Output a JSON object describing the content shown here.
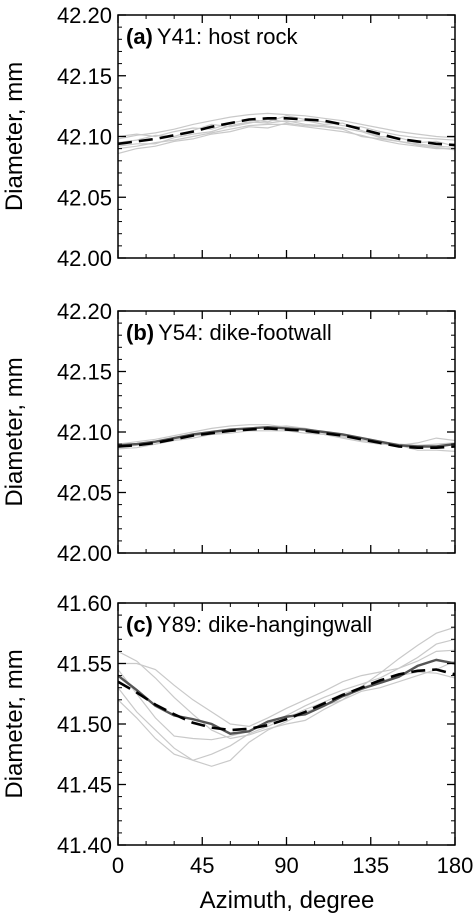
{
  "figure": {
    "ylabel": "Diameter, mm",
    "xlabel": "Azimuth, degree"
  },
  "chart_data": [
    {
      "type": "line",
      "letter": "(a)",
      "title": "Y41: host rock",
      "xlabel": "Azimuth, degree",
      "ylabel": "Diameter, mm",
      "xlim": [
        0,
        180
      ],
      "ylim": [
        42.0,
        42.2
      ],
      "x_ticks": [
        "0",
        "45",
        "90",
        "135",
        "180"
      ],
      "y_ticks": [
        "42.00",
        "42.05",
        "42.10",
        "42.15",
        "42.20"
      ],
      "x_tick_values": [
        0,
        45,
        90,
        135,
        180
      ],
      "y_tick_values": [
        42.0,
        42.05,
        42.1,
        42.15,
        42.2
      ],
      "x": [
        0,
        10,
        20,
        30,
        40,
        50,
        60,
        70,
        80,
        90,
        100,
        110,
        120,
        130,
        140,
        150,
        160,
        170,
        180
      ],
      "series": [
        {
          "style": "dashed",
          "values": [
            42.094,
            42.096,
            42.098,
            42.101,
            42.104,
            42.108,
            42.111,
            42.114,
            42.115,
            42.115,
            42.114,
            42.113,
            42.11,
            42.106,
            42.102,
            42.098,
            42.096,
            42.094,
            42.093
          ]
        },
        {
          "style": "faint",
          "values": [
            42.098,
            42.101,
            42.103,
            42.106,
            42.11,
            42.113,
            42.116,
            42.118,
            42.119,
            42.118,
            42.117,
            42.115,
            42.113,
            42.11,
            42.107,
            42.104,
            42.102,
            42.1,
            42.099
          ]
        },
        {
          "style": "faint",
          "values": [
            42.09,
            42.092,
            42.095,
            42.097,
            42.1,
            42.103,
            42.106,
            42.109,
            42.11,
            42.11,
            42.108,
            42.106,
            42.104,
            42.101,
            42.097,
            42.094,
            42.092,
            42.09,
            42.09
          ]
        },
        {
          "style": "faint",
          "values": [
            42.1,
            42.102,
            42.1,
            42.104,
            42.107,
            42.106,
            42.111,
            42.114,
            42.112,
            42.117,
            42.114,
            42.112,
            42.109,
            42.108,
            42.104,
            42.101,
            42.099,
            42.098,
            42.097
          ]
        },
        {
          "style": "faint",
          "values": [
            42.086,
            42.09,
            42.092,
            42.096,
            42.098,
            42.102,
            42.104,
            42.108,
            42.107,
            42.111,
            42.109,
            42.108,
            42.106,
            42.1,
            42.098,
            42.096,
            42.093,
            42.091,
            42.089
          ]
        },
        {
          "style": "faint",
          "values": [
            42.095,
            42.097,
            42.101,
            42.1,
            42.105,
            42.11,
            42.108,
            42.111,
            42.114,
            42.112,
            42.113,
            42.11,
            42.111,
            42.105,
            42.1,
            42.099,
            42.095,
            42.096,
            42.092
          ]
        },
        {
          "style": "faint",
          "values": [
            42.092,
            42.094,
            42.094,
            42.099,
            42.102,
            42.104,
            42.109,
            42.112,
            42.111,
            42.113,
            42.11,
            42.109,
            42.107,
            42.104,
            42.099,
            42.096,
            42.094,
            42.092,
            42.091
          ]
        }
      ]
    },
    {
      "type": "line",
      "letter": "(b)",
      "title": "Y54: dike-footwall",
      "xlabel": "Azimuth, degree",
      "ylabel": "Diameter, mm",
      "xlim": [
        0,
        180
      ],
      "ylim": [
        42.0,
        42.2
      ],
      "x_ticks": [
        "0",
        "45",
        "90",
        "135",
        "180"
      ],
      "y_ticks": [
        "42.00",
        "42.05",
        "42.10",
        "42.15",
        "42.20"
      ],
      "x_tick_values": [
        0,
        45,
        90,
        135,
        180
      ],
      "y_tick_values": [
        42.0,
        42.05,
        42.1,
        42.15,
        42.2
      ],
      "x": [
        0,
        10,
        20,
        30,
        40,
        50,
        60,
        70,
        80,
        90,
        100,
        110,
        120,
        130,
        140,
        150,
        160,
        170,
        180
      ],
      "series": [
        {
          "style": "dashed",
          "values": [
            42.088,
            42.089,
            42.091,
            42.094,
            42.097,
            42.099,
            42.101,
            42.102,
            42.103,
            42.102,
            42.101,
            42.099,
            42.097,
            42.094,
            42.091,
            42.088,
            42.087,
            42.087,
            42.088
          ]
        },
        {
          "style": "solid",
          "values": [
            42.089,
            42.09,
            42.092,
            42.095,
            42.098,
            42.1,
            42.102,
            42.103,
            42.104,
            42.103,
            42.102,
            42.1,
            42.098,
            42.095,
            42.092,
            42.089,
            42.088,
            42.088,
            42.09
          ]
        },
        {
          "style": "faint",
          "values": [
            42.087,
            42.089,
            42.09,
            42.094,
            42.097,
            42.098,
            42.101,
            42.103,
            42.104,
            42.105,
            42.103,
            42.1,
            42.097,
            42.095,
            42.091,
            42.089,
            42.085,
            42.085,
            42.084
          ]
        },
        {
          "style": "faint",
          "values": [
            42.09,
            42.092,
            42.094,
            42.097,
            42.1,
            42.103,
            42.105,
            42.106,
            42.106,
            42.104,
            42.101,
            42.098,
            42.095,
            42.092,
            42.09,
            42.089,
            42.091,
            42.095,
            42.093
          ]
        },
        {
          "style": "faint",
          "values": [
            42.086,
            42.087,
            42.09,
            42.093,
            42.095,
            42.098,
            42.099,
            42.101,
            42.101,
            42.101,
            42.099,
            42.098,
            42.096,
            42.093,
            42.092,
            42.09,
            42.089,
            42.09,
            42.091
          ]
        }
      ]
    },
    {
      "type": "line",
      "letter": "(c)",
      "title": "Y89: dike-hangingwall",
      "xlabel": "Azimuth, degree",
      "ylabel": "Diameter, mm",
      "xlim": [
        0,
        180
      ],
      "ylim": [
        41.4,
        41.6
      ],
      "x_ticks": [
        "0",
        "45",
        "90",
        "135",
        "180"
      ],
      "y_ticks": [
        "41.40",
        "41.45",
        "41.50",
        "41.55",
        "41.60"
      ],
      "x_tick_values": [
        0,
        45,
        90,
        135,
        180
      ],
      "y_tick_values": [
        41.4,
        41.45,
        41.5,
        41.55,
        41.6
      ],
      "x": [
        0,
        10,
        20,
        30,
        40,
        50,
        60,
        70,
        80,
        90,
        100,
        110,
        120,
        130,
        140,
        150,
        160,
        170,
        180
      ],
      "series": [
        {
          "style": "dashed",
          "values": [
            41.535,
            41.526,
            41.516,
            41.508,
            41.501,
            41.497,
            41.495,
            41.496,
            41.499,
            41.504,
            41.51,
            41.517,
            41.524,
            41.53,
            41.536,
            41.541,
            41.544,
            41.545,
            41.541
          ]
        },
        {
          "style": "solid",
          "values": [
            41.54,
            41.528,
            41.515,
            41.507,
            41.504,
            41.5,
            41.492,
            41.494,
            41.502,
            41.506,
            41.508,
            41.515,
            41.523,
            41.529,
            41.534,
            41.539,
            41.548,
            41.553,
            41.55
          ]
        },
        {
          "style": "faint",
          "values": [
            41.545,
            41.525,
            41.505,
            41.49,
            41.488,
            41.487,
            41.49,
            41.494,
            41.5,
            41.507,
            41.515,
            41.522,
            41.528,
            41.533,
            41.538,
            41.546,
            41.555,
            41.566,
            41.57
          ]
        },
        {
          "style": "faint",
          "values": [
            41.52,
            41.505,
            41.488,
            41.475,
            41.47,
            41.475,
            41.482,
            41.492,
            41.498,
            41.505,
            41.512,
            41.518,
            41.525,
            41.53,
            41.535,
            41.54,
            41.543,
            41.542,
            41.538
          ]
        },
        {
          "style": "faint",
          "values": [
            41.55,
            41.55,
            41.545,
            41.532,
            41.52,
            41.51,
            41.5,
            41.498,
            41.505,
            41.513,
            41.52,
            41.527,
            41.535,
            41.54,
            41.543,
            41.546,
            41.552,
            41.56,
            41.561
          ]
        },
        {
          "style": "faint",
          "values": [
            41.53,
            41.51,
            41.495,
            41.48,
            41.47,
            41.465,
            41.47,
            41.485,
            41.495,
            41.502,
            41.51,
            41.515,
            41.52,
            41.527,
            41.53,
            41.535,
            41.54,
            41.545,
            41.552
          ]
        },
        {
          "style": "faint",
          "values": [
            41.56,
            41.552,
            41.538,
            41.522,
            41.508,
            41.495,
            41.488,
            41.491,
            41.496,
            41.5,
            41.503,
            41.512,
            41.52,
            41.531,
            41.542,
            41.554,
            41.565,
            41.575,
            41.58
          ]
        }
      ]
    }
  ]
}
